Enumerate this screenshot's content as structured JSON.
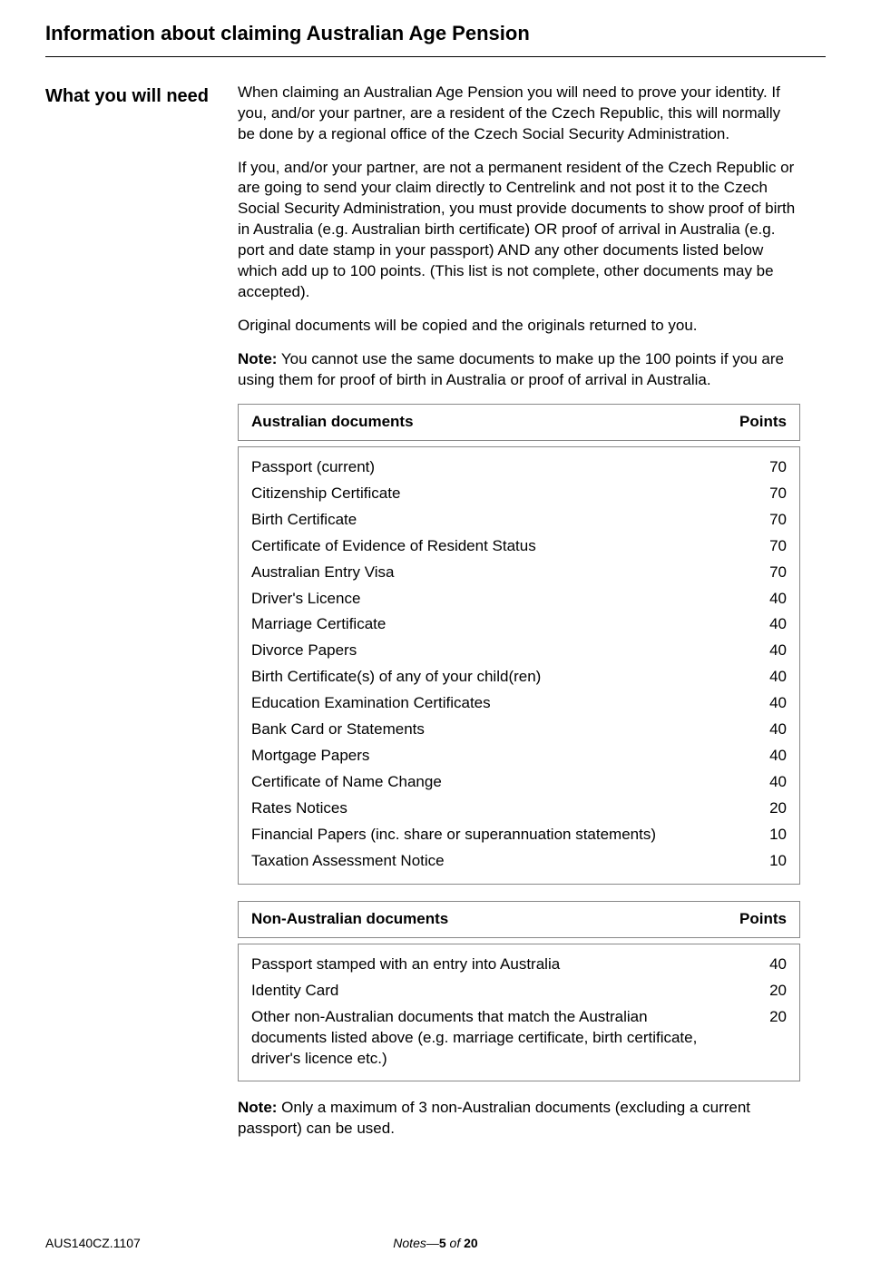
{
  "title": "Information about claiming Australian Age Pension",
  "side_heading": "What you will need",
  "paragraphs": {
    "p1": "When claiming an Australian Age Pension you will need to prove your identity. If you, and/or your partner, are a resident of the Czech Republic, this will normally be done by a regional office of the Czech Social Security Administration.",
    "p2": "If you, and/or your partner, are not a permanent resident of the Czech Republic or are going to send your claim directly to Centrelink and not post it to the Czech Social Security Administration, you must provide documents to show proof of birth in Australia (e.g. Australian birth certificate) OR proof of arrival in Australia (e.g. port and date stamp in your passport) AND any other documents listed below which add up to 100 points. (This list is not complete, other documents may be accepted).",
    "p3": "Original documents will be copied and the originals returned to you.",
    "note1_label": "Note:",
    "note1_text": " You cannot use the same documents to make up the 100 points if you are using them for proof of birth in Australia or proof of arrival in Australia.",
    "note2_label": "Note:",
    "note2_text": " Only a maximum of 3 non-Australian documents (excluding a current passport) can be used."
  },
  "aus_table": {
    "header_left": "Australian documents",
    "header_right": "Points",
    "rows": [
      {
        "name": "Passport (current)",
        "points": "70"
      },
      {
        "name": "Citizenship Certificate",
        "points": "70"
      },
      {
        "name": "Birth Certificate",
        "points": "70"
      },
      {
        "name": "Certificate of Evidence of Resident Status",
        "points": "70"
      },
      {
        "name": "Australian Entry Visa",
        "points": "70"
      },
      {
        "name": "Driver's Licence",
        "points": "40"
      },
      {
        "name": "Marriage Certificate",
        "points": "40"
      },
      {
        "name": "Divorce Papers",
        "points": "40"
      },
      {
        "name": "Birth Certificate(s) of any of your child(ren)",
        "points": "40"
      },
      {
        "name": "Education Examination Certificates",
        "points": "40"
      },
      {
        "name": "Bank Card or Statements",
        "points": "40"
      },
      {
        "name": "Mortgage Papers",
        "points": "40"
      },
      {
        "name": "Certificate of Name Change",
        "points": "40"
      },
      {
        "name": "Rates Notices",
        "points": "20"
      },
      {
        "name": "Financial Papers (inc. share or superannuation statements)",
        "points": "10"
      },
      {
        "name": "Taxation Assessment Notice",
        "points": "10"
      }
    ]
  },
  "nonaus_table": {
    "header_left": "Non-Australian documents",
    "header_right": "Points",
    "rows": [
      {
        "name": "Passport stamped with an entry into Australia",
        "points": "40"
      },
      {
        "name": "Identity Card",
        "points": "20"
      },
      {
        "name": "Other non-Australian documents that match the Australian documents listed above (e.g. marriage certificate, birth certificate, driver's licence etc.)",
        "points": "20"
      }
    ]
  },
  "footer": {
    "code": "AUS140CZ.1107",
    "notes_prefix": "Notes—",
    "page_current": "5",
    "page_sep": " of ",
    "page_total": "20"
  }
}
